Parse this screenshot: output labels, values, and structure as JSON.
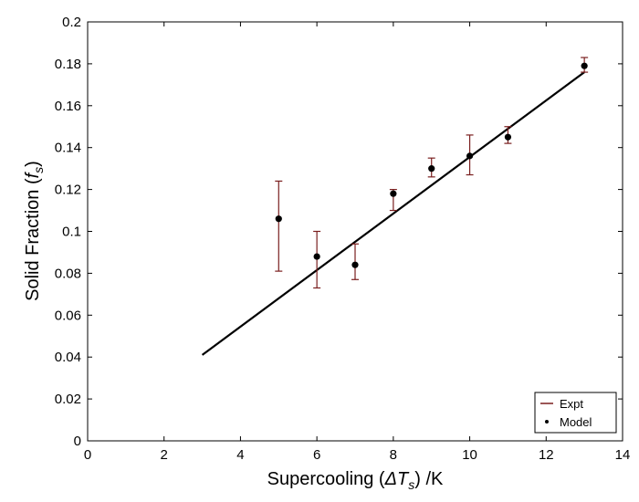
{
  "chart_data": {
    "type": "scatter",
    "title": "",
    "xlabel": {
      "prefix": "Supercooling (",
      "symbol": "ΔT",
      "subscript": "s",
      "suffix": ") /K"
    },
    "ylabel": {
      "prefix": "Solid Fraction (",
      "symbol": "f",
      "subscript": "s",
      "suffix": ")"
    },
    "xlim": [
      0,
      14
    ],
    "ylim": [
      0,
      0.2
    ],
    "xticks": [
      "0",
      "2",
      "4",
      "6",
      "8",
      "10",
      "12",
      "14"
    ],
    "yticks": [
      "0",
      "0.02",
      "0.04",
      "0.06",
      "0.08",
      "0.1",
      "0.12",
      "0.14",
      "0.16",
      "0.18",
      "0.2"
    ],
    "grid": false,
    "legend_position": "bottom-right",
    "series": [
      {
        "name": "Expt",
        "kind": "errorbar",
        "color": "#7a1f1f",
        "x": [
          5,
          6,
          7,
          8,
          9,
          10,
          11,
          13
        ],
        "y": [
          0.106,
          0.088,
          0.084,
          0.118,
          0.13,
          0.136,
          0.145,
          0.179
        ],
        "yerr_low": [
          0.081,
          0.073,
          0.077,
          0.11,
          0.126,
          0.127,
          0.142,
          0.176
        ],
        "yerr_high": [
          0.124,
          0.1,
          0.094,
          0.12,
          0.135,
          0.146,
          0.15,
          0.183
        ]
      },
      {
        "name": "Model",
        "kind": "points",
        "color": "#000000",
        "x": [
          5,
          6,
          7,
          8,
          9,
          10,
          11,
          13
        ],
        "y": [
          0.106,
          0.088,
          0.084,
          0.118,
          0.13,
          0.136,
          0.145,
          0.179
        ]
      },
      {
        "kind": "fit-line",
        "color": "#000000",
        "x": [
          3,
          13
        ],
        "y": [
          0.041,
          0.176
        ]
      }
    ]
  }
}
